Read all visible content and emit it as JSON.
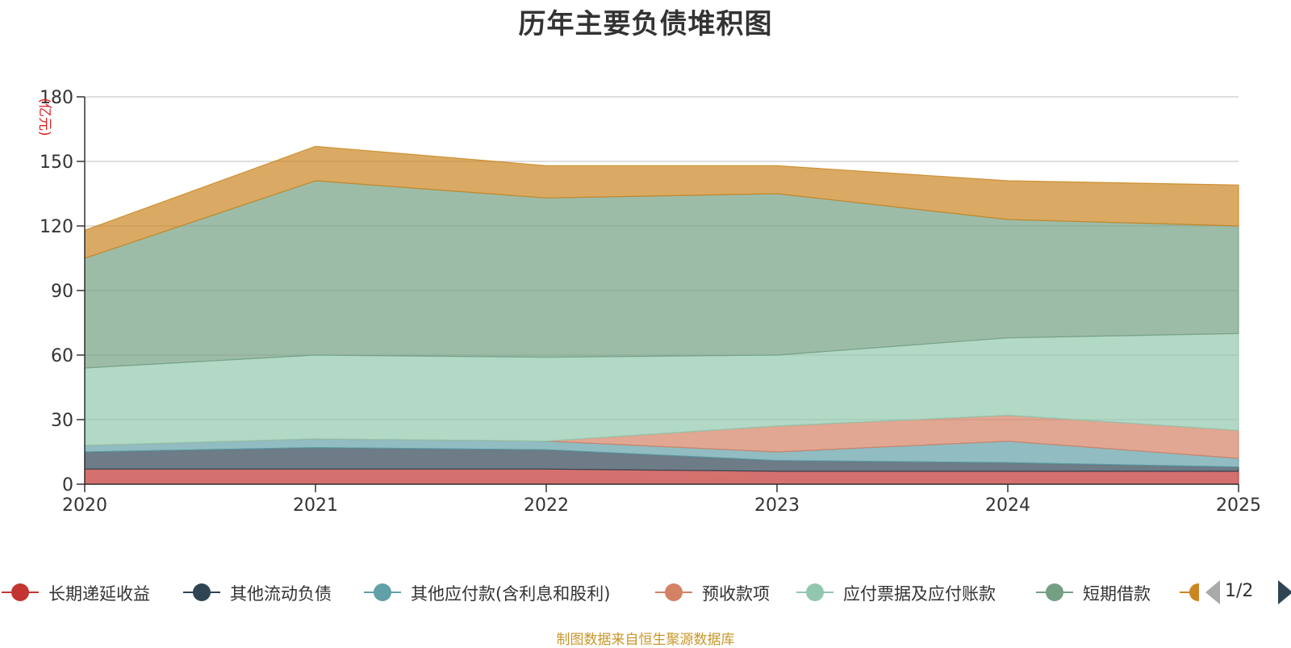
{
  "chart_data": {
    "type": "area",
    "stacked": true,
    "title": "历年主要负债堆积图",
    "ylabel": "(亿元)",
    "xlabel": "",
    "x": [
      "2020",
      "2021",
      "2022",
      "2023",
      "2024",
      "2025"
    ],
    "ylim": [
      0,
      180
    ],
    "yticks": [
      0,
      30,
      60,
      90,
      120,
      150,
      180
    ],
    "grid": true,
    "series": [
      {
        "name": "长期递延收益",
        "color": "#c23531",
        "values": [
          7,
          7,
          7,
          6,
          6,
          6
        ]
      },
      {
        "name": "其他流动负债",
        "color": "#2f4554",
        "values": [
          8,
          10,
          9,
          5,
          4,
          2
        ]
      },
      {
        "name": "其他应付款(含利息和股利)",
        "color": "#61a0a8",
        "values": [
          3,
          4,
          4,
          4,
          10,
          4
        ]
      },
      {
        "name": "预收款项",
        "color": "#d48265",
        "values": [
          0,
          0,
          0,
          12,
          12,
          13
        ]
      },
      {
        "name": "应付票据及应付账款",
        "color": "#91c7ae",
        "values": [
          36,
          39,
          39,
          33,
          36,
          45
        ]
      },
      {
        "name": "短期借款",
        "color": "#749f83",
        "values": [
          51,
          81,
          74,
          75,
          55,
          50
        ]
      },
      {
        "name": "",
        "color": "#ca8622",
        "values": [
          13,
          16,
          15,
          13,
          18,
          19
        ]
      }
    ],
    "legend_position": "bottom"
  },
  "legend_page": "1/2",
  "source_note": "制图数据来自恒生聚源数据库"
}
